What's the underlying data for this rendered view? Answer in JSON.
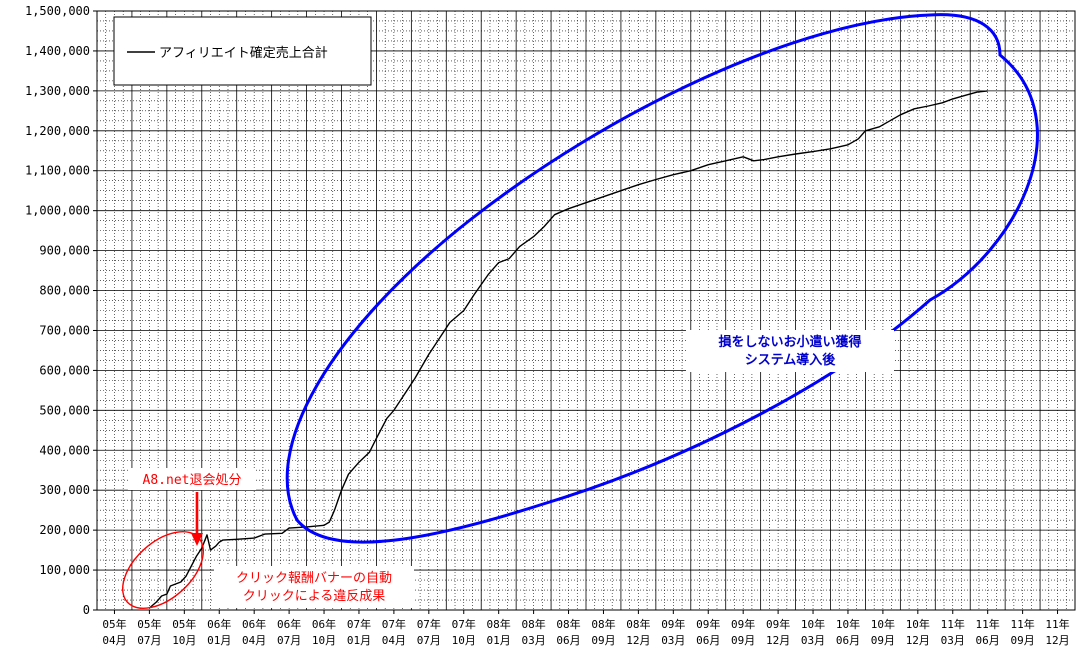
{
  "chart_data": {
    "type": "line",
    "title": "",
    "xlabel": "",
    "ylabel": "",
    "ylim": [
      0,
      1500000
    ],
    "y_ticks": [
      "0",
      "100,000",
      "200,000",
      "300,000",
      "400,000",
      "500,000",
      "600,000",
      "700,000",
      "800,000",
      "900,000",
      "1,000,000",
      "1,100,000",
      "1,200,000",
      "1,300,000",
      "1,400,000",
      "1,500,000"
    ],
    "x_ticks": [
      {
        "year": "05年",
        "month": "04月"
      },
      {
        "year": "05年",
        "month": "07月"
      },
      {
        "year": "05年",
        "month": "10月"
      },
      {
        "year": "06年",
        "month": "01月"
      },
      {
        "year": "06年",
        "month": "04月"
      },
      {
        "year": "06年",
        "month": "07月"
      },
      {
        "year": "06年",
        "month": "10月"
      },
      {
        "year": "07年",
        "month": "01月"
      },
      {
        "year": "07年",
        "month": "04月"
      },
      {
        "year": "07年",
        "month": "07月"
      },
      {
        "year": "07年",
        "month": "10月"
      },
      {
        "year": "08年",
        "month": "01月"
      },
      {
        "year": "08年",
        "month": "03月"
      },
      {
        "year": "08年",
        "month": "06月"
      },
      {
        "year": "08年",
        "month": "09月"
      },
      {
        "year": "08年",
        "month": "12月"
      },
      {
        "year": "09年",
        "month": "03月"
      },
      {
        "year": "09年",
        "month": "06月"
      },
      {
        "year": "09年",
        "month": "09月"
      },
      {
        "year": "09年",
        "month": "12月"
      },
      {
        "year": "10年",
        "month": "03月"
      },
      {
        "year": "10年",
        "month": "06月"
      },
      {
        "year": "10年",
        "month": "09月"
      },
      {
        "year": "10年",
        "month": "12月"
      },
      {
        "year": "11年",
        "month": "03月"
      },
      {
        "year": "11年",
        "month": "06月"
      },
      {
        "year": "11年",
        "month": "09月"
      },
      {
        "year": "11年",
        "month": "12月"
      }
    ],
    "grid": true,
    "legend_position": "top-left",
    "series": [
      {
        "name": "アフィリエイト確定売上合計",
        "color": "#000000",
        "points": [
          [
            1.0,
            5000
          ],
          [
            1.2,
            20000
          ],
          [
            1.35,
            35000
          ],
          [
            1.5,
            40000
          ],
          [
            1.6,
            60000
          ],
          [
            1.75,
            65000
          ],
          [
            1.9,
            70000
          ],
          [
            2.05,
            85000
          ],
          [
            2.2,
            110000
          ],
          [
            2.35,
            135000
          ],
          [
            2.5,
            155000
          ],
          [
            2.65,
            188000
          ],
          [
            2.75,
            150000
          ],
          [
            2.9,
            160000
          ],
          [
            3.0,
            170000
          ],
          [
            3.1,
            175000
          ],
          [
            3.5,
            177000
          ],
          [
            4.0,
            180000
          ],
          [
            4.3,
            190000
          ],
          [
            4.8,
            192000
          ],
          [
            5.0,
            205000
          ],
          [
            5.5,
            208000
          ],
          [
            6.0,
            212000
          ],
          [
            6.15,
            220000
          ],
          [
            6.3,
            250000
          ],
          [
            6.5,
            300000
          ],
          [
            6.7,
            340000
          ],
          [
            7.0,
            370000
          ],
          [
            7.3,
            395000
          ],
          [
            7.5,
            430000
          ],
          [
            7.8,
            480000
          ],
          [
            8.0,
            500000
          ],
          [
            8.3,
            540000
          ],
          [
            8.6,
            580000
          ],
          [
            9.0,
            640000
          ],
          [
            9.3,
            680000
          ],
          [
            9.6,
            720000
          ],
          [
            10.0,
            750000
          ],
          [
            10.3,
            790000
          ],
          [
            10.7,
            840000
          ],
          [
            11.0,
            870000
          ],
          [
            11.3,
            880000
          ],
          [
            11.6,
            910000
          ],
          [
            12.0,
            935000
          ],
          [
            12.3,
            960000
          ],
          [
            12.6,
            990000
          ],
          [
            13.0,
            1005000
          ],
          [
            13.5,
            1020000
          ],
          [
            14.0,
            1035000
          ],
          [
            14.5,
            1050000
          ],
          [
            15.0,
            1065000
          ],
          [
            15.5,
            1078000
          ],
          [
            16.0,
            1090000
          ],
          [
            16.5,
            1100000
          ],
          [
            17.0,
            1115000
          ],
          [
            17.5,
            1125000
          ],
          [
            18.0,
            1135000
          ],
          [
            18.3,
            1125000
          ],
          [
            18.6,
            1128000
          ],
          [
            19.0,
            1135000
          ],
          [
            19.5,
            1142000
          ],
          [
            20.0,
            1148000
          ],
          [
            20.5,
            1155000
          ],
          [
            21.0,
            1165000
          ],
          [
            21.3,
            1180000
          ],
          [
            21.5,
            1200000
          ],
          [
            21.9,
            1210000
          ],
          [
            22.2,
            1225000
          ],
          [
            22.5,
            1240000
          ],
          [
            22.9,
            1255000
          ],
          [
            23.3,
            1262000
          ],
          [
            23.7,
            1270000
          ],
          [
            24.0,
            1280000
          ],
          [
            24.4,
            1290000
          ],
          [
            24.7,
            1297000
          ],
          [
            25.0,
            1300000
          ]
        ]
      }
    ],
    "annotations": [
      {
        "lines": [
          "A8.net退会処分"
        ],
        "color": "#ff0000"
      },
      {
        "lines": [
          "クリック報酬バナーの自動",
          "クリックによる違反成果"
        ],
        "color": "#ff0000"
      },
      {
        "lines": [
          "損をしないお小遣い獲得",
          "システム導入後"
        ],
        "color": "#0000cc"
      }
    ]
  }
}
